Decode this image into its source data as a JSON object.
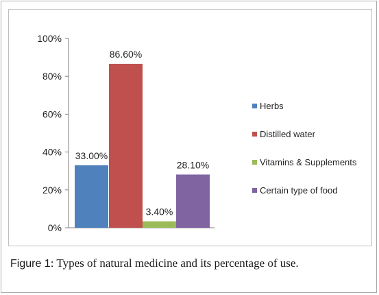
{
  "caption": {
    "label": "Figure 1",
    "text": ": Types of natural medicine and its percentage of use."
  },
  "chart_data": {
    "type": "bar",
    "categories": [
      "Herbs",
      "Distilled water",
      "Vitamins & Supplements",
      "Certain type of food"
    ],
    "values": [
      33.0,
      86.6,
      3.4,
      28.1
    ],
    "data_labels": [
      "33.00%",
      "86.60%",
      "3.40%",
      "28.10%"
    ],
    "colors": [
      "#4f81bd",
      "#c0504d",
      "#9bbb59",
      "#8064a2"
    ],
    "title": "",
    "xlabel": "",
    "ylabel": "",
    "ylim": [
      0,
      100
    ],
    "yticks": [
      0,
      20,
      40,
      60,
      80,
      100
    ],
    "ytick_labels": [
      "0%",
      "20%",
      "40%",
      "60%",
      "80%",
      "100%"
    ],
    "grid": false,
    "legend": "right"
  }
}
